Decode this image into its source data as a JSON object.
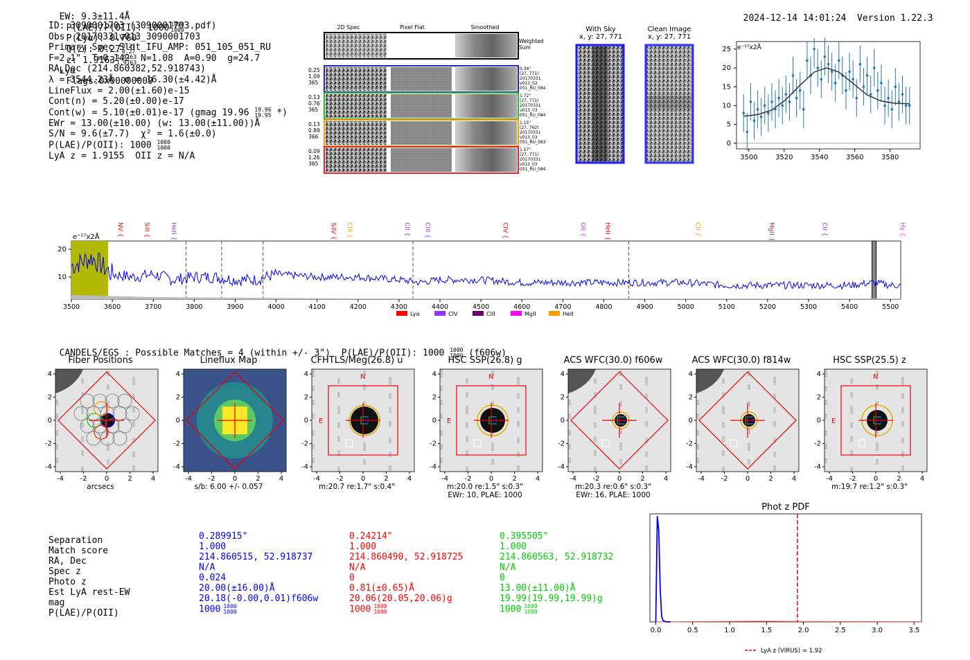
{
  "header": {
    "ew": "EW: 9.3±11.4Å",
    "plae": "P(LAE)/P(OII): 1000",
    "plae_sup": "1000",
    "plae_sub": "1000",
    "plya": "P(Lyα): 0.760",
    "qz": "Q(z): 0.27",
    "qz_sup": "0.27",
    "qz_sub": "0.27",
    "z": "z: 1.9163",
    "z_sup": "1.9163",
    "z_sub": "1.9163",
    "line": "Lyα",
    "flags": "Flags:0x00000009",
    "datetime": "2024-12-14 14:01:24",
    "version": "Version 1.22.3"
  },
  "info": {
    "lines": [
      "ID: 3090001703 (3090001703.pdf)",
      "Obs: 20170331v013_3090001703",
      "Primary Spec_Slot_IFU_AMP: 051_105_051_RU",
      "F=2.1\"  T=0.142  N=1.08  A=0.90  g=24.7",
      "RA,Dec (214.860382,52.918743)",
      "λ = 3544.23Å  σ = 16.30(±4.42)Å",
      "LineFlux = 2.00(±1.60)e-15",
      "Cont(n) = 5.20(±0.00)e-17",
      "Cont(w) = 5.10(±0.01)e-17 (gmag 19.96",
      "EWr = 13.00(±10.00) (w: 13.00(±11.00))Å",
      "S/N = 9.6(±7.7)  χ² = 1.6(±0.0)",
      "P(LAE)/P(OII): 1000",
      "LyA z = 1.9155  OII z = N/A"
    ],
    "gmag_sup": "19.96",
    "gmag_sub": "19.95",
    "gmag_tail": "*)",
    "plae_sup": "1000",
    "plae_sub": "1000"
  },
  "cutouts": {
    "col_headers": [
      "2D Spec",
      "Pixel Flat",
      "Smoothed"
    ],
    "weighted_label": "Weighted\nSum",
    "rows": [
      {
        "left": [
          "0.25",
          "1.09",
          "365"
        ],
        "right": [
          "0.34\"",
          "(27, 771)",
          "20170331",
          "v013_02",
          "051_RU_084"
        ],
        "color": "#2222cc"
      },
      {
        "left": [
          "0.13",
          "0.76",
          "365"
        ],
        "right": [
          "1.72\"",
          "(27, 771)",
          "20170331",
          "v013_03",
          "051_RU_084"
        ],
        "color": "#22bb22"
      },
      {
        "left": [
          "0.13",
          "0.89",
          "366"
        ],
        "right": [
          "1.15\"",
          "(27, 762)",
          "20170331",
          "v013_03",
          "051_RU_083"
        ],
        "color": "#ff9900"
      },
      {
        "left": [
          "0.09",
          "1.26",
          "365"
        ],
        "right": [
          "1.57\"",
          "(27, 771)",
          "20170331",
          "v013_03",
          "051_RU_084"
        ],
        "color": "#ee2222"
      }
    ],
    "with_sky_title": "With Sky",
    "with_sky_sub": "x, y: 27, 771",
    "clean_title": "Clean Image",
    "clean_sub": "x, y: 27, 771"
  },
  "zoom_plot": {
    "ylabel": "e⁻¹⁷x2Å",
    "xticks": [
      "3500",
      "3520",
      "3540",
      "3560",
      "3580"
    ],
    "yticks": [
      "0",
      "5",
      "10",
      "15",
      "20",
      "25"
    ]
  },
  "spectrum": {
    "ylabel": "e⁻¹⁷x2Å",
    "yticks": [
      "10",
      "20"
    ],
    "xticks": [
      "3500",
      "3600",
      "3700",
      "3800",
      "3900",
      "4000",
      "4100",
      "4200",
      "4300",
      "4400",
      "4500",
      "4600",
      "4700",
      "4800",
      "4900",
      "5000",
      "5100",
      "5200",
      "5300",
      "5400",
      "5500"
    ],
    "line_labels": [
      {
        "name": "NV",
        "color": "#ff0000"
      },
      {
        "name": "SiII",
        "color": "#ff0000"
      },
      {
        "name": "HeII",
        "color": "#9933ff"
      },
      {
        "name": "SiIV",
        "color": "#ff0000"
      },
      {
        "name": "CIII",
        "color": "#ff9900"
      },
      {
        "name": "CII",
        "color": "#9933ff"
      },
      {
        "name": "CIII",
        "color": "#9933ff"
      },
      {
        "name": "CIV",
        "color": "#ff0000"
      },
      {
        "name": "OII",
        "color": "#cc33ff"
      },
      {
        "name": "HeII",
        "color": "#ff0000"
      },
      {
        "name": "CII",
        "color": "#ff9900"
      },
      {
        "name": "MgII",
        "color": "#aa3366"
      },
      {
        "name": "CII",
        "color": "#9933ff"
      },
      {
        "name": "Hγ",
        "color": "#ff33ff"
      }
    ],
    "legend": [
      {
        "name": "Lyα",
        "color": "#ff0000"
      },
      {
        "name": "CIV",
        "color": "#9933ff"
      },
      {
        "name": "CIII",
        "color": "#660066"
      },
      {
        "name": "MgII",
        "color": "#ff00ff"
      },
      {
        "name": "HeII",
        "color": "#ff9900"
      }
    ]
  },
  "candels": {
    "text": "CANDELS/EGS : Possible Matches = 4 (within +/- 3\")  P(LAE)/P(OII): 1000",
    "sup": "1000",
    "sub": "1000",
    "tail": "(f606w)"
  },
  "imaging": [
    {
      "title": "Fiber Positions",
      "caption": "arcsecs",
      "caption2": ""
    },
    {
      "title": "Lineflux Map",
      "caption": "s/b: 6.00 +/- 0.057",
      "caption2": ""
    },
    {
      "title": "CFHTLS/Meg(26.8) u",
      "caption": "m:20.7  re:1.7\"  s:0.4\"",
      "caption2": ""
    },
    {
      "title": "HSC SSP(26.8) g",
      "caption": "m:20.0  re:1.5\"  s:0.3\"",
      "caption2": "EWr: 10, PLAE: 1000"
    },
    {
      "title": "ACS WFC(30.0) f606w",
      "caption": "m:20.3  re:0.6\"  s:0.3\"",
      "caption2": "EWr: 16, PLAE: 1000"
    },
    {
      "title": "ACS WFC(30.0) f814w",
      "caption": "",
      "caption2": ""
    },
    {
      "title": "HSC SSP(25.5) z",
      "caption": "m:19.7  re:1.2\"  s:0.3\"",
      "caption2": ""
    }
  ],
  "img_ticks": [
    "-4",
    "-2",
    "0",
    "2",
    "4"
  ],
  "compass": {
    "n": "N",
    "e": "E"
  },
  "match_table": {
    "labels": [
      "Separation",
      "Match score",
      "RA, Dec",
      "Spec z",
      "Photo z",
      "Est LyA rest-EW",
      "mag",
      "P(LAE)/P(OII)"
    ],
    "columns": [
      {
        "color": "#0000ff",
        "values": [
          "0.289915\"",
          "1.000",
          "214.860515, 52.918737",
          "N/A",
          "0.024",
          "20.00(±16.00)Å",
          "20.18(-0.00,0.01)f606w",
          "1000"
        ],
        "sup": "1000",
        "sub": "1000"
      },
      {
        "color": "#ff0000",
        "values": [
          "0.24214\"",
          "1.000",
          "214.860490, 52.918725",
          "N/A",
          "0",
          "0.81(±0.65)Å",
          "20.06(20.05,20.06)g",
          "1000"
        ],
        "sup": "1000",
        "sub": "1000"
      },
      {
        "color": "#00cc00",
        "values": [
          "0.395505\"",
          "1.000",
          "214.860563, 52.918732",
          "N/A",
          "0",
          "13.00(±11.00)Å",
          "19.99(19.99,19.99)g",
          "1000"
        ],
        "sup": "1000",
        "sub": "1000"
      }
    ]
  },
  "chart_data": [
    {
      "type": "line",
      "title": "",
      "xlabel": "",
      "ylabel": "e-17x2Å",
      "xlim": [
        3493,
        3597
      ],
      "ylim": [
        -1.5,
        27
      ],
      "series": [
        {
          "name": "data",
          "x": [
            3497,
            3499,
            3501,
            3503,
            3505,
            3507,
            3509,
            3511,
            3513,
            3515,
            3517,
            3519,
            3521,
            3523,
            3525,
            3527,
            3529,
            3531,
            3533,
            3535,
            3537,
            3539,
            3541,
            3543,
            3545,
            3547,
            3549,
            3551,
            3553,
            3555,
            3557,
            3559,
            3561,
            3563,
            3565,
            3567,
            3569,
            3571,
            3573,
            3575,
            3577,
            3579,
            3581,
            3583,
            3585,
            3587,
            3589,
            3591
          ],
          "y": [
            8,
            3,
            11,
            6,
            9,
            7,
            10,
            8,
            11,
            9,
            12,
            10,
            13,
            11,
            18,
            12,
            14,
            9,
            22,
            18,
            25,
            20,
            17,
            23,
            21,
            19,
            16,
            22,
            18,
            14,
            19,
            17,
            12,
            21,
            15,
            18,
            13,
            20,
            14,
            16,
            10,
            12,
            9,
            15,
            11,
            13,
            10,
            10
          ]
        },
        {
          "name": "gaussian fit",
          "x": [
            3497,
            3505,
            3513,
            3521,
            3529,
            3537,
            3544,
            3551,
            3559,
            3567,
            3575,
            3583,
            3591
          ],
          "y": [
            7.2,
            7.6,
            8.8,
            11.6,
            15.4,
            18.9,
            20.0,
            18.9,
            15.9,
            12.8,
            11.2,
            10.6,
            10.5
          ]
        }
      ],
      "xticks": [
        3500,
        3520,
        3540,
        3560,
        3580
      ],
      "yticks": [
        0,
        5,
        10,
        15,
        20,
        25
      ]
    },
    {
      "type": "line",
      "title": "",
      "xlabel": "",
      "ylabel": "e-17x2Å",
      "xlim": [
        3500,
        5525
      ],
      "ylim": [
        2,
        23
      ],
      "series": [
        {
          "name": "spectrum",
          "x": [
            3500,
            3550,
            3600,
            3650,
            3700,
            3750,
            3800,
            3850,
            3900,
            3950,
            4000,
            4100,
            4200,
            4300,
            4350,
            4400,
            4500,
            4600,
            4700,
            4800,
            4900,
            5000,
            5100,
            5200,
            5300,
            5400,
            5460,
            5500,
            5525
          ],
          "y": [
            14,
            17,
            11,
            10,
            11,
            9,
            10,
            10,
            9,
            9,
            11,
            10,
            10,
            9,
            8,
            9,
            9,
            8,
            8,
            8,
            8,
            8,
            7,
            7,
            7,
            7,
            8,
            7,
            7
          ]
        }
      ],
      "vlines": [
        3780,
        3867,
        3968,
        4334,
        4861
      ],
      "highlight_range": [
        3500,
        3590
      ],
      "mask_range": [
        5455,
        5465
      ],
      "xticks": [
        3500,
        3600,
        3700,
        3800,
        3900,
        4000,
        4100,
        4200,
        4300,
        4400,
        4500,
        4600,
        4700,
        4800,
        4900,
        5000,
        5100,
        5200,
        5300,
        5400,
        5500
      ],
      "yticks": [
        10,
        20
      ]
    },
    {
      "type": "line",
      "title": "Phot z PDF",
      "xlabel": "",
      "ylabel": "",
      "xlim": [
        -0.08,
        3.6
      ],
      "ylim": [
        0,
        1
      ],
      "series": [
        {
          "name": "blue pdf",
          "x": [
            0.0,
            0.02,
            0.04,
            0.06,
            0.08,
            0.1,
            0.15,
            0.2
          ],
          "y": [
            0.0,
            0.98,
            0.85,
            0.3,
            0.05,
            0.01,
            0.0,
            0.0
          ]
        },
        {
          "name": "red pdf",
          "x": [
            0.0,
            1.0,
            1.5,
            2.0,
            3.6
          ],
          "y": [
            0.0,
            0.005,
            0.008,
            0.004,
            0.002
          ]
        }
      ],
      "vline": {
        "x": 1.92,
        "label": "LyA z (VIRUS) = 1.92"
      },
      "xticks": [
        0.0,
        0.5,
        1.0,
        1.5,
        2.0,
        2.5,
        3.0,
        3.5
      ],
      "xticklabels": [
        "0.0",
        "0.5",
        "1.0",
        "1.5",
        "2.0",
        "2.5",
        "3.0",
        "3.5"
      ]
    }
  ]
}
